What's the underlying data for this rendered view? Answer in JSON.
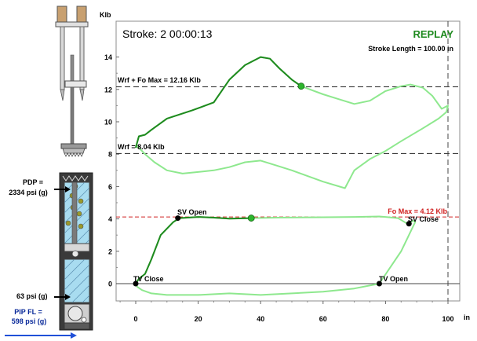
{
  "header": {
    "stroke_label": "Stroke: 2  00:00:13",
    "mode_label": "REPLAY",
    "stroke_length_label": "Stroke Length = 100.00 in"
  },
  "axes": {
    "y_unit": "Klb",
    "x_unit": "in",
    "y_ticks": [
      "0",
      "2",
      "4",
      "6",
      "8",
      "10",
      "12",
      "14"
    ],
    "x_ticks": [
      "0",
      "20",
      "40",
      "60",
      "80",
      "100"
    ]
  },
  "reference_lines": {
    "wrf_fo_max": "Wrf + Fo Max = 12.16 Klb",
    "wrf": "Wrf = 8.04 Klb",
    "fo_max": "Fo Max = 4.12 Klb"
  },
  "point_labels": {
    "sv_open": "SV Open",
    "sv_close": "SV Close",
    "tv_close": "TV Close",
    "tv_open": "TV Open"
  },
  "pump_panel": {
    "pdp_label": "PDP =",
    "pdp_value": "2334 psi (g)",
    "intake_value": "63 psi (g)",
    "pip_label": "PIP FL =",
    "pip_value": "598 psi (g)"
  },
  "colors": {
    "dark_green": "#1f8a1f",
    "light_green": "#8ee88e",
    "marker_green": "#2cb52c",
    "fo_max_line": "#d02020",
    "mode_label": "#1f8a1f",
    "pip_text": "#0a2a9a",
    "arrow_blue": "#2050d8"
  },
  "chart_data": {
    "type": "line",
    "xlabel": "in",
    "ylabel": "Klb",
    "xlim": [
      0,
      100
    ],
    "ylim": [
      0,
      15
    ],
    "grid": false,
    "series": [
      {
        "role": "surface-card",
        "x": [
          0,
          1,
          3,
          5,
          10,
          18,
          25,
          30,
          35,
          40,
          43,
          46,
          50,
          53,
          60,
          65,
          70,
          75,
          80,
          85,
          88,
          92,
          95,
          98,
          100,
          99.5,
          97,
          92,
          85,
          80,
          75,
          70,
          67,
          60,
          50,
          45,
          40,
          35,
          30,
          25,
          20,
          15,
          10,
          6,
          3,
          0.5,
          0
        ],
        "y": [
          8.4,
          9.1,
          9.2,
          9.5,
          10.2,
          10.7,
          11.2,
          12.6,
          13.5,
          14.0,
          13.9,
          13.3,
          12.6,
          12.2,
          11.7,
          11.4,
          11.1,
          11.3,
          11.9,
          12.2,
          12.3,
          12.1,
          11.6,
          10.8,
          11.0,
          10.6,
          10.2,
          9.6,
          8.8,
          8.2,
          7.7,
          7.0,
          5.9,
          6.3,
          7.0,
          7.3,
          7.6,
          7.5,
          7.2,
          7.0,
          6.9,
          6.8,
          7.0,
          7.5,
          8.0,
          8.5,
          8.4
        ],
        "marker": {
          "x": 53,
          "y": 12.2
        }
      },
      {
        "role": "pump-card",
        "x": [
          0,
          1,
          3,
          5,
          8,
          12,
          14,
          20,
          25,
          30,
          37,
          45,
          60,
          70,
          78,
          80,
          84,
          87,
          89,
          89.5,
          89,
          85,
          78,
          70,
          60,
          50,
          40,
          30,
          20,
          10,
          5,
          2,
          0.5,
          0
        ],
        "y": [
          0,
          0.3,
          0.6,
          1.5,
          3.0,
          3.8,
          4.05,
          4.12,
          4.08,
          4.02,
          4.05,
          4.08,
          4.1,
          4.12,
          4.15,
          4.12,
          4.05,
          3.7,
          3.9,
          3.8,
          3.6,
          2.0,
          0,
          -0.3,
          -0.5,
          -0.6,
          -0.7,
          -0.6,
          -0.7,
          -0.7,
          -0.6,
          -0.4,
          -0.2,
          0
        ],
        "marker": {
          "x": 37,
          "y": 4.05
        }
      }
    ],
    "reference_lines": [
      {
        "y": 12.16,
        "style": "dashed",
        "label": "Wrf + Fo Max = 12.16 Klb"
      },
      {
        "y": 8.04,
        "style": "dashed",
        "label": "Wrf = 8.04 Klb"
      },
      {
        "y": 4.12,
        "style": "dashed-red",
        "label": "Fo Max = 4.12 Klb"
      },
      {
        "y": 0,
        "style": "solid",
        "label": ""
      }
    ],
    "stroke_length_marker_x": 100,
    "valve_points": [
      {
        "label": "SV Open",
        "x": 13.5,
        "y": 4.05
      },
      {
        "label": "SV Close",
        "x": 87.5,
        "y": 3.7
      },
      {
        "label": "TV Close",
        "x": 0,
        "y": 0
      },
      {
        "label": "TV Open",
        "x": 78,
        "y": 0
      }
    ]
  }
}
